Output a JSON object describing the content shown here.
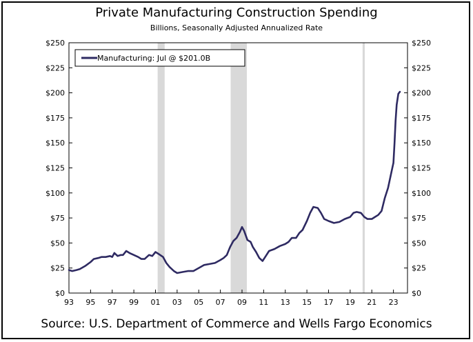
{
  "chart_data": {
    "type": "line",
    "title": "Private Manufacturing Construction Spending",
    "subtitle": "Billions, Seasonally Adjusted Annualized Rate",
    "source": "Source: U.S. Department of Commerce and Wells Fargo Economics",
    "xlabel": "",
    "ylabel": "",
    "xlim": [
      1993,
      2024.3
    ],
    "ylim": [
      0,
      250
    ],
    "y_ticks": [
      0,
      25,
      50,
      75,
      100,
      125,
      150,
      175,
      200,
      225,
      250
    ],
    "y_tick_labels": [
      "$0",
      "$25",
      "$50",
      "$75",
      "$100",
      "$125",
      "$150",
      "$175",
      "$200",
      "$225",
      "$250"
    ],
    "x_ticks": [
      1993,
      1995,
      1997,
      1999,
      2001,
      2003,
      2005,
      2007,
      2009,
      2011,
      2013,
      2015,
      2017,
      2019,
      2021,
      2023
    ],
    "x_tick_labels": [
      "93",
      "95",
      "97",
      "99",
      "01",
      "03",
      "05",
      "07",
      "09",
      "11",
      "13",
      "15",
      "17",
      "19",
      "21",
      "23"
    ],
    "recessions": [
      [
        2001.2,
        2001.85
      ],
      [
        2007.95,
        2009.45
      ],
      [
        2020.15,
        2020.35
      ]
    ],
    "legend": {
      "label": "Manufacturing: Jul @ $201.0B",
      "position": "top-left"
    },
    "series": [
      {
        "name": "Manufacturing",
        "color": "#2e2a62",
        "x": [
          1993.0,
          1993.3,
          1993.7,
          1994.0,
          1994.5,
          1995.0,
          1995.3,
          1995.7,
          1996.0,
          1996.4,
          1996.8,
          1997.0,
          1997.2,
          1997.5,
          1997.8,
          1998.0,
          1998.3,
          1998.6,
          1999.0,
          1999.4,
          1999.7,
          2000.0,
          2000.4,
          2000.7,
          2001.0,
          2001.3,
          2001.7,
          2002.0,
          2002.3,
          2002.7,
          2003.0,
          2003.5,
          2004.0,
          2004.5,
          2005.0,
          2005.5,
          2006.0,
          2006.5,
          2007.0,
          2007.3,
          2007.6,
          2007.9,
          2008.2,
          2008.5,
          2008.8,
          2009.0,
          2009.2,
          2009.5,
          2009.8,
          2010.0,
          2010.3,
          2010.6,
          2010.9,
          2011.2,
          2011.5,
          2012.0,
          2012.5,
          2013.0,
          2013.3,
          2013.6,
          2014.0,
          2014.3,
          2014.6,
          2015.0,
          2015.3,
          2015.6,
          2016.0,
          2016.3,
          2016.6,
          2017.0,
          2017.5,
          2018.0,
          2018.5,
          2019.0,
          2019.3,
          2019.6,
          2020.0,
          2020.3,
          2020.6,
          2021.0,
          2021.3,
          2021.6,
          2021.9,
          2022.2,
          2022.5,
          2022.7,
          2022.9,
          2023.0,
          2023.1,
          2023.2,
          2023.3,
          2023.45,
          2023.6
        ],
        "y": [
          23,
          22,
          23,
          24,
          27,
          31,
          34,
          35,
          36,
          36,
          37,
          36,
          40,
          37,
          38,
          38,
          42,
          40,
          38,
          36,
          34,
          34,
          38,
          37,
          41,
          39,
          36,
          30,
          26,
          22,
          20,
          21,
          22,
          22,
          25,
          28,
          29,
          30,
          33,
          35,
          38,
          46,
          52,
          55,
          61,
          66,
          62,
          53,
          51,
          46,
          41,
          35,
          32,
          37,
          42,
          44,
          47,
          49,
          51,
          55,
          55,
          60,
          63,
          72,
          80,
          86,
          85,
          80,
          74,
          72,
          70,
          71,
          74,
          76,
          80,
          81,
          80,
          76,
          74,
          74,
          76,
          78,
          82,
          95,
          105,
          115,
          125,
          130,
          150,
          172,
          188,
          199,
          201
        ]
      }
    ]
  }
}
